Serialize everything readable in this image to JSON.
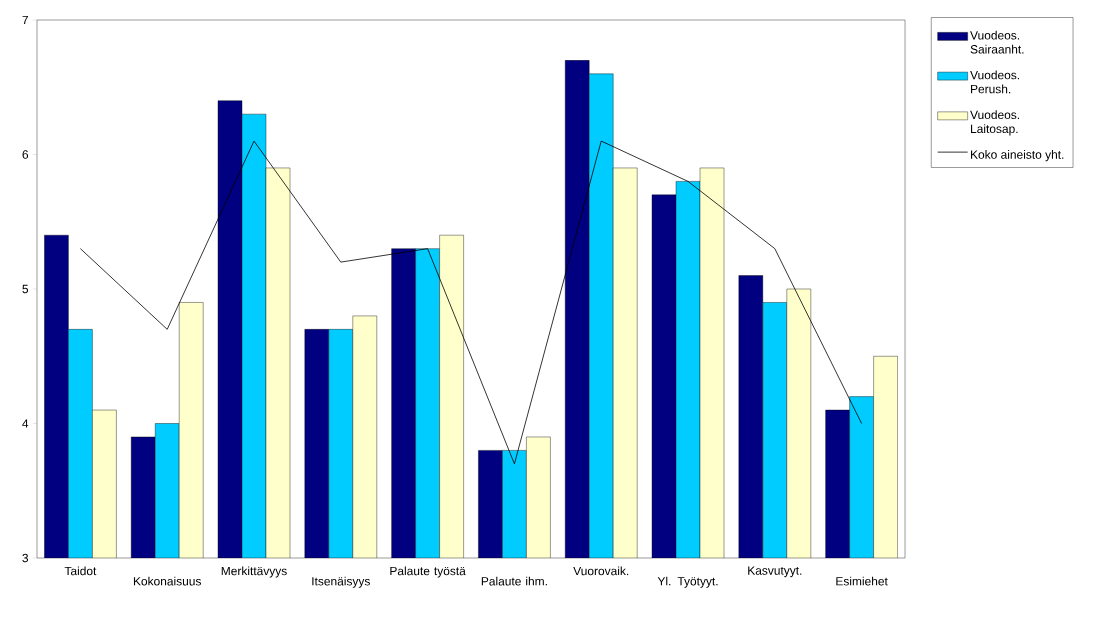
{
  "chart_data": {
    "type": "bar",
    "categories": [
      "Taidot",
      "Kokonaisuus",
      "Merkittävyys",
      "Itsenäisyys",
      "Palaute työstä",
      "Palaute ihm.",
      "Vuorovaik.",
      "Yl. Työtyyt.",
      "Kasvutyyt.",
      "Esimiehet"
    ],
    "series": [
      {
        "name": "Vuodeos. Sairaanht.",
        "color": "#000080",
        "values": [
          5.4,
          3.9,
          6.4,
          4.7,
          5.3,
          3.8,
          6.7,
          5.7,
          5.1,
          4.1
        ]
      },
      {
        "name": "Vuodeos. Perush.",
        "color": "#00ccff",
        "values": [
          4.7,
          4.0,
          6.3,
          4.7,
          5.3,
          3.8,
          6.6,
          5.8,
          4.9,
          4.2
        ]
      },
      {
        "name": "Vuodeos. Laitosap.",
        "color": "#ffffcc",
        "values": [
          4.1,
          4.9,
          5.9,
          4.8,
          5.4,
          3.9,
          5.9,
          5.9,
          5.0,
          4.5
        ]
      },
      {
        "name": "Koko aineisto yht.",
        "type": "line",
        "color": "#000000",
        "values": [
          5.3,
          4.7,
          6.1,
          5.2,
          5.3,
          3.7,
          6.1,
          5.8,
          5.3,
          4.0
        ]
      }
    ],
    "ylim": [
      3,
      7
    ],
    "yticks": [
      3,
      4,
      5,
      6,
      7
    ],
    "legend": "right"
  }
}
